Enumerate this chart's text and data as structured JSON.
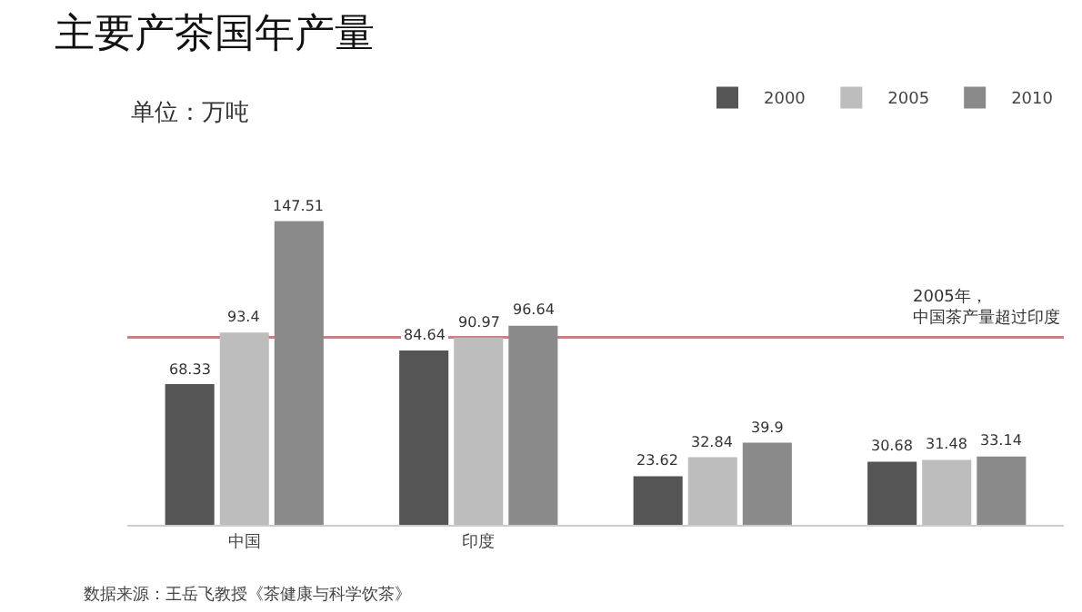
{
  "chart_data": {
    "type": "bar",
    "title": "主要产茶国年产量",
    "subtitle": "单位：万吨",
    "categories": [
      "中国",
      "印度",
      null,
      null
    ],
    "series": [
      {
        "name": "2000",
        "color": "#555555",
        "values": [
          68.33,
          84.64,
          23.62,
          30.68
        ]
      },
      {
        "name": "2005",
        "color": "#bdbdbd",
        "values": [
          93.4,
          90.97,
          32.84,
          31.48
        ]
      },
      {
        "name": "2010",
        "color": "#8a8a8a",
        "values": [
          147.51,
          96.64,
          39.9,
          33.14
        ]
      }
    ],
    "data_labels": true,
    "legend": "top right",
    "ref_lines": [
      {
        "axis": "y",
        "value": 91,
        "label": "2005年，中国茶产量超过印度",
        "color": "#c98080"
      }
    ],
    "annotations": [
      "数据来源：王岳飞教授《茶健康与科学饮茶》"
    ]
  }
}
